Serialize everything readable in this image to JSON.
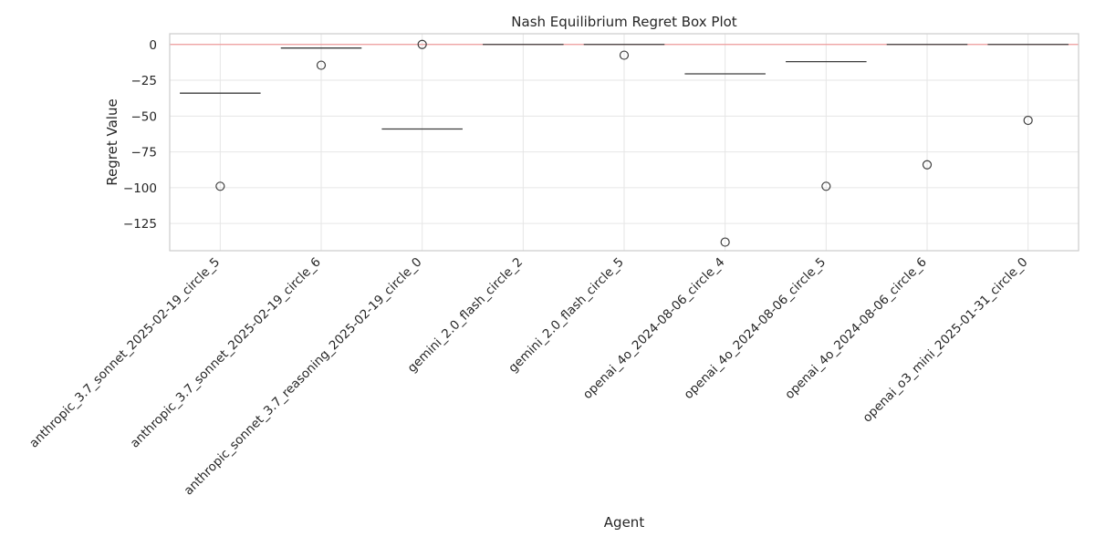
{
  "chart_data": {
    "type": "box",
    "title": "Nash Equilibrium Regret Box Plot",
    "xlabel": "Agent",
    "ylabel": "Regret Value",
    "ylim": [
      -144,
      7.5
    ],
    "yticks": [
      0,
      -25,
      -50,
      -75,
      -100,
      -125
    ],
    "ytick_labels": [
      "0",
      "−25",
      "−50",
      "−75",
      "−100",
      "−125"
    ],
    "reference_line": {
      "y": 0,
      "color": "#f08080"
    },
    "grid": true,
    "categories": [
      "anthropic_3.7_sonnet_2025-02-19_circle_5",
      "anthropic_3.7_sonnet_2025-02-19_circle_6",
      "anthropic_sonnet_3.7_reasoning_2025-02-19_circle_0",
      "gemini_2.0_flash_circle_2",
      "gemini_2.0_flash_circle_5",
      "openai_4o_2024-08-06_circle_4",
      "openai_4o_2024-08-06_circle_5",
      "openai_4o_2024-08-06_circle_6",
      "openai_o3_mini_2025-01-31_circle_0"
    ],
    "medians": [
      -34,
      -2.5,
      -59,
      0,
      0,
      -20.5,
      -12,
      0,
      0
    ],
    "outliers": [
      [
        -99
      ],
      [
        -14.5
      ],
      [
        0
      ],
      [],
      [
        -7.5
      ],
      [
        -138
      ],
      [
        -99
      ],
      [
        -84
      ],
      [
        -53
      ]
    ]
  }
}
